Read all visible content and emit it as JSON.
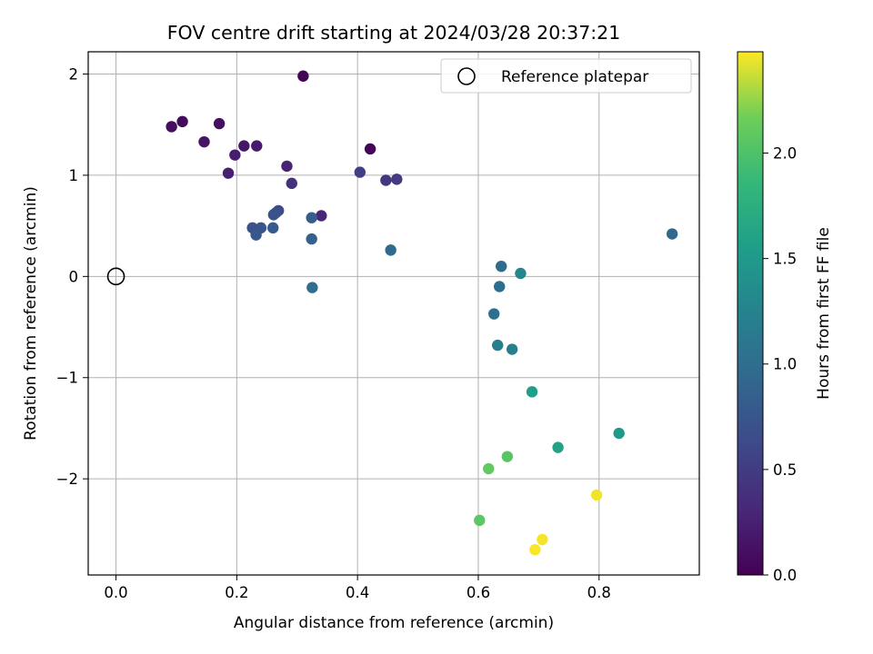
{
  "chart_data": {
    "type": "scatter",
    "title": "FOV centre drift starting at 2024/03/28 20:37:21",
    "xlabel": "Angular distance from reference (arcmin)",
    "ylabel": "Rotation from reference (arcmin)",
    "xlim": [
      -0.046,
      0.966
    ],
    "ylim": [
      -2.95,
      2.22
    ],
    "xticks": [
      0.0,
      0.2,
      0.4,
      0.6,
      0.8
    ],
    "xtick_labels": [
      "0.0",
      "0.2",
      "0.4",
      "0.6",
      "0.8"
    ],
    "yticks": [
      -2,
      -1,
      0,
      1,
      2
    ],
    "ytick_labels": [
      "−2",
      "−1",
      "0",
      "1",
      "2"
    ],
    "grid": true,
    "legend": {
      "location": "upper right",
      "entries": [
        "Reference platepar"
      ]
    },
    "reference_point": {
      "x": 0.0,
      "y": 0.0,
      "label": "Reference platepar"
    },
    "colorbar": {
      "label": "Hours from first FF file",
      "colormap": "viridis",
      "range": [
        0.0,
        2.48
      ],
      "ticks": [
        0.0,
        0.5,
        1.0,
        1.5,
        2.0
      ],
      "tick_labels": [
        "0.0",
        "0.5",
        "1.0",
        "1.5",
        "2.0"
      ]
    },
    "points": [
      {
        "x": 0.31,
        "y": 1.98,
        "t": 0.02
      },
      {
        "x": 0.421,
        "y": 1.26,
        "t": 0.04
      },
      {
        "x": 0.11,
        "y": 1.53,
        "t": 0.07
      },
      {
        "x": 0.092,
        "y": 1.48,
        "t": 0.1
      },
      {
        "x": 0.171,
        "y": 1.51,
        "t": 0.12
      },
      {
        "x": 0.146,
        "y": 1.33,
        "t": 0.15
      },
      {
        "x": 0.212,
        "y": 1.29,
        "t": 0.17
      },
      {
        "x": 0.233,
        "y": 1.29,
        "t": 0.2
      },
      {
        "x": 0.197,
        "y": 1.2,
        "t": 0.22
      },
      {
        "x": 0.186,
        "y": 1.02,
        "t": 0.25
      },
      {
        "x": 0.283,
        "y": 1.09,
        "t": 0.27
      },
      {
        "x": 0.34,
        "y": 0.6,
        "t": 0.3
      },
      {
        "x": 0.291,
        "y": 0.92,
        "t": 0.4
      },
      {
        "x": 0.447,
        "y": 0.95,
        "t": 0.46
      },
      {
        "x": 0.465,
        "y": 0.96,
        "t": 0.48
      },
      {
        "x": 0.404,
        "y": 1.03,
        "t": 0.52
      },
      {
        "x": 0.269,
        "y": 0.65,
        "t": 0.65
      },
      {
        "x": 0.265,
        "y": 0.63,
        "t": 0.68
      },
      {
        "x": 0.261,
        "y": 0.61,
        "t": 0.72
      },
      {
        "x": 0.226,
        "y": 0.48,
        "t": 0.7
      },
      {
        "x": 0.24,
        "y": 0.48,
        "t": 0.73
      },
      {
        "x": 0.232,
        "y": 0.41,
        "t": 0.76
      },
      {
        "x": 0.26,
        "y": 0.48,
        "t": 0.8
      },
      {
        "x": 0.324,
        "y": 0.58,
        "t": 0.82
      },
      {
        "x": 0.324,
        "y": 0.37,
        "t": 0.86
      },
      {
        "x": 0.325,
        "y": -0.11,
        "t": 1.0
      },
      {
        "x": 0.455,
        "y": 0.26,
        "t": 0.95
      },
      {
        "x": 0.921,
        "y": 0.42,
        "t": 0.93
      },
      {
        "x": 0.638,
        "y": 0.1,
        "t": 0.97
      },
      {
        "x": 0.635,
        "y": -0.1,
        "t": 0.99
      },
      {
        "x": 0.626,
        "y": -0.37,
        "t": 1.03
      },
      {
        "x": 0.67,
        "y": 0.03,
        "t": 1.28
      },
      {
        "x": 0.632,
        "y": -0.68,
        "t": 1.18
      },
      {
        "x": 0.656,
        "y": -0.72,
        "t": 1.21
      },
      {
        "x": 0.689,
        "y": -1.14,
        "t": 1.55
      },
      {
        "x": 0.833,
        "y": -1.55,
        "t": 1.5
      },
      {
        "x": 0.732,
        "y": -1.69,
        "t": 1.6
      },
      {
        "x": 0.648,
        "y": -1.78,
        "t": 2.05
      },
      {
        "x": 0.617,
        "y": -1.9,
        "t": 2.1
      },
      {
        "x": 0.602,
        "y": -2.41,
        "t": 2.08
      },
      {
        "x": 0.796,
        "y": -2.16,
        "t": 2.45
      },
      {
        "x": 0.706,
        "y": -2.6,
        "t": 2.46
      },
      {
        "x": 0.694,
        "y": -2.7,
        "t": 2.47
      }
    ]
  }
}
